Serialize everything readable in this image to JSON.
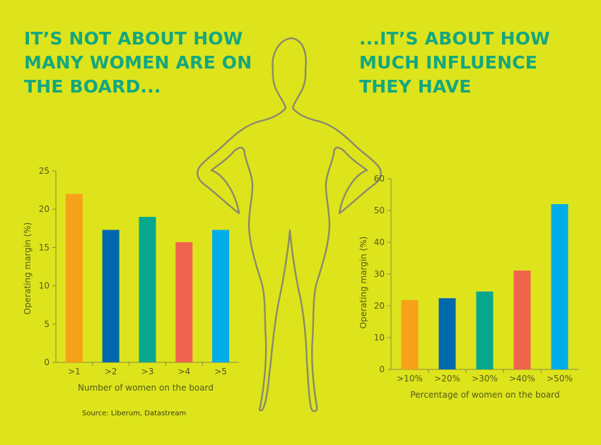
{
  "headline_left": [
    "IT’S NOT ABOUT HOW",
    "MANY WOMEN ARE ON",
    "THE BOARD..."
  ],
  "headline_right": [
    "...IT’S ABOUT HOW",
    "MUCH INFLUENCE",
    "THEY HAVE"
  ],
  "source": "Source: Liberum, Datastream",
  "colors": [
    "#f7a11a",
    "#0068ad",
    "#07a88e",
    "#f0634d",
    "#00ade9"
  ],
  "chart_data": [
    {
      "type": "bar",
      "categories": [
        ">1",
        ">2",
        ">3",
        ">4",
        ">5"
      ],
      "values": [
        22,
        17.3,
        19,
        15.7,
        17.3
      ],
      "xlabel": "Number of women on the board",
      "ylabel": "Operating margin (%)",
      "ylim": [
        0,
        25
      ],
      "yticks": [
        0,
        5,
        10,
        15,
        20,
        25
      ],
      "grid": false,
      "legend": "none"
    },
    {
      "type": "bar",
      "categories": [
        ">10%",
        ">20%",
        ">30%",
        ">40%",
        ">50%"
      ],
      "values": [
        21.8,
        22.4,
        24.5,
        31.1,
        52
      ],
      "xlabel": "Percentage of women on the board",
      "ylabel": "Operating margin (%)",
      "ylim": [
        0,
        60
      ],
      "yticks": [
        0,
        10,
        20,
        30,
        40,
        50,
        60
      ],
      "grid": false,
      "legend": "none"
    }
  ]
}
